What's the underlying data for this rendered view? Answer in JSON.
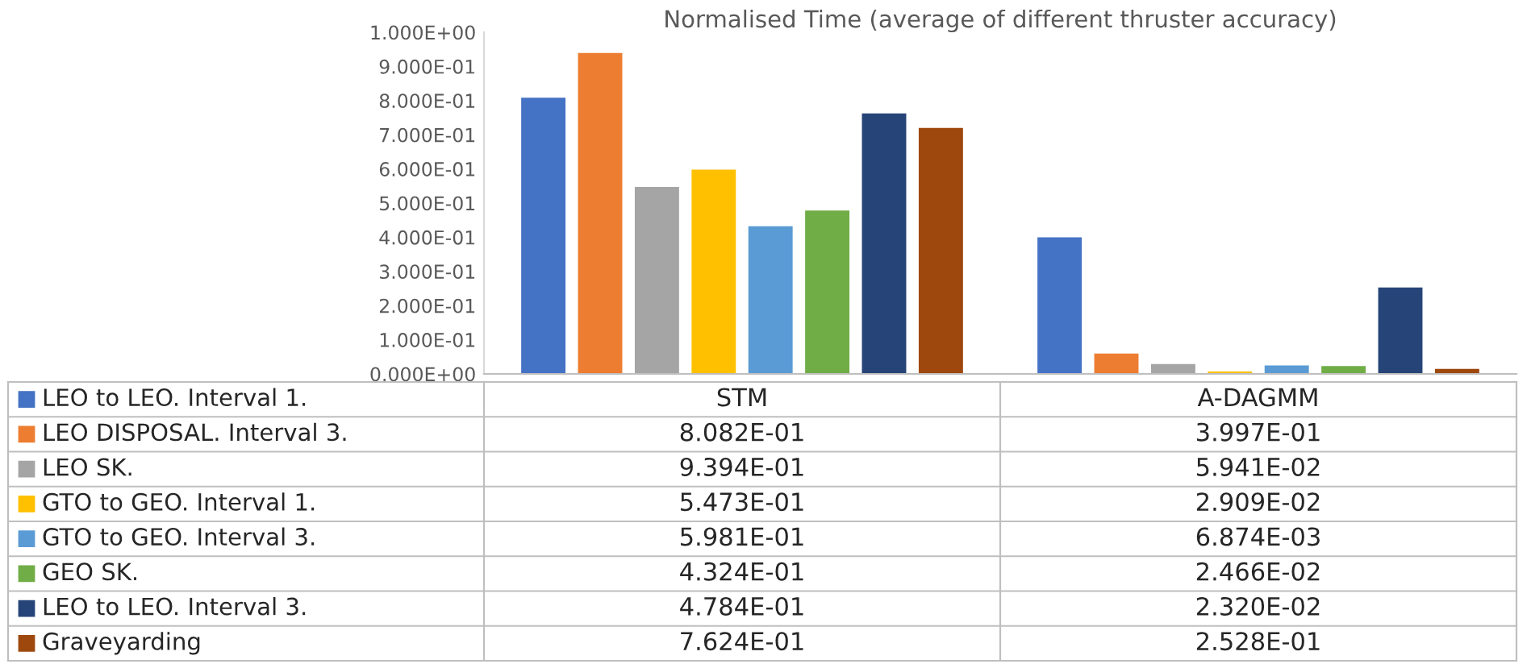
{
  "chart_data": {
    "type": "bar",
    "title": "Normalised Time (average of different thruster accuracy)",
    "categories": [
      "STM",
      "A-DAGMM"
    ],
    "series": [
      {
        "name": "LEO to LEO. Interval 1.",
        "color": "#4472c4",
        "values": [
          0.8082,
          0.3997
        ],
        "value_labels": [
          "8.082E-01",
          "3.997E-01"
        ]
      },
      {
        "name": "LEO DISPOSAL. Interval 3.",
        "color": "#ed7d31",
        "values": [
          0.9394,
          0.05941
        ],
        "value_labels": [
          "9.394E-01",
          "5.941E-02"
        ]
      },
      {
        "name": "LEO SK.",
        "color": "#a5a5a5",
        "values": [
          0.5473,
          0.02909
        ],
        "value_labels": [
          "5.473E-01",
          "2.909E-02"
        ]
      },
      {
        "name": "GTO to GEO. Interval 1.",
        "color": "#ffc000",
        "values": [
          0.5981,
          0.006874
        ],
        "value_labels": [
          "5.981E-01",
          "6.874E-03"
        ]
      },
      {
        "name": "GTO to GEO. Interval 3.",
        "color": "#5b9bd5",
        "values": [
          0.4324,
          0.02466
        ],
        "value_labels": [
          "4.324E-01",
          "2.466E-02"
        ]
      },
      {
        "name": "GEO SK.",
        "color": "#70ad47",
        "values": [
          0.4784,
          0.0232
        ],
        "value_labels": [
          "4.784E-01",
          "2.320E-02"
        ]
      },
      {
        "name": "LEO to LEO. Interval 3.",
        "color": "#264478",
        "values": [
          0.7624,
          0.2528
        ],
        "value_labels": [
          "7.624E-01",
          "2.528E-01"
        ]
      },
      {
        "name": "Graveyarding",
        "color": "#9e480e",
        "values": [
          0.72,
          0.015
        ],
        "value_labels": [
          null,
          null
        ]
      }
    ],
    "ylim": [
      0,
      1
    ],
    "yticks": [
      {
        "value": 0,
        "label": "0.000E+00"
      },
      {
        "value": 0.1,
        "label": "1.000E-01"
      },
      {
        "value": 0.2,
        "label": "2.000E-01"
      },
      {
        "value": 0.3,
        "label": "3.000E-01"
      },
      {
        "value": 0.4,
        "label": "4.000E-01"
      },
      {
        "value": 0.5,
        "label": "5.000E-01"
      },
      {
        "value": 0.6,
        "label": "6.000E-01"
      },
      {
        "value": 0.7,
        "label": "7.000E-01"
      },
      {
        "value": 0.8,
        "label": "8.000E-01"
      },
      {
        "value": 0.9,
        "label": "9.000E-01"
      },
      {
        "value": 1,
        "label": "1.000E+00"
      }
    ],
    "legend": "bottom"
  }
}
